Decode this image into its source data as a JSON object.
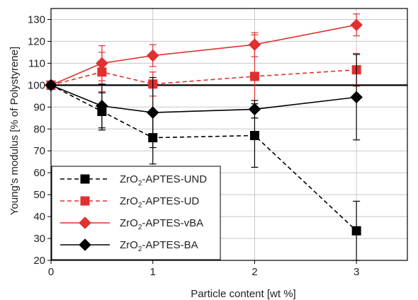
{
  "chart_data": {
    "type": "line",
    "xlabel": "Particle content [wt %]",
    "ylabel": "Young's modulus [% of Polystyrene]",
    "xlim": [
      0,
      3.5
    ],
    "ylim": [
      20,
      135
    ],
    "x_ticks": [
      "0",
      "1",
      "2",
      "3"
    ],
    "y_ticks": [
      "20",
      "30",
      "40",
      "50",
      "60",
      "70",
      "80",
      "90",
      "100",
      "110",
      "120",
      "130"
    ],
    "grid": true,
    "reference_line": {
      "y": 100
    },
    "legend_position": "bottom-left",
    "series": [
      {
        "name": "ZrO2-APTES-UND",
        "legend_base": "ZrO",
        "legend_sub": "2",
        "legend_rest": "-APTES-UND",
        "color": "#000000",
        "line": "dashed",
        "marker": "square",
        "x": [
          0,
          0.5,
          1,
          2,
          3
        ],
        "y": [
          100,
          88,
          76,
          77,
          33.5
        ],
        "err": [
          0,
          8.5,
          12,
          14.5,
          13.5
        ]
      },
      {
        "name": "ZrO2-APTES-UD",
        "legend_base": "ZrO",
        "legend_sub": "2",
        "legend_rest": "-APTES-UD",
        "color": "#e03030",
        "line": "dashed",
        "marker": "square",
        "x": [
          0,
          0.5,
          1,
          2,
          3
        ],
        "y": [
          100,
          106,
          100.5,
          104,
          107
        ],
        "err": [
          0,
          9,
          5.5,
          19,
          7.5
        ]
      },
      {
        "name": "ZrO2-APTES-vBA",
        "legend_base": "ZrO",
        "legend_sub": "2",
        "legend_rest": "-APTES-vBA",
        "color": "#e03030",
        "line": "solid",
        "marker": "diamond",
        "x": [
          0,
          0.5,
          1,
          2,
          3
        ],
        "y": [
          100,
          110,
          113.5,
          118.5,
          127.5
        ],
        "err": [
          0,
          8,
          5,
          5.5,
          5
        ]
      },
      {
        "name": "ZrO2-APTES-BA",
        "legend_base": "ZrO",
        "legend_sub": "2",
        "legend_rest": "-APTES-BA",
        "color": "#000000",
        "line": "solid",
        "marker": "diamond",
        "x": [
          0,
          0.5,
          1,
          2,
          3
        ],
        "y": [
          100,
          90.5,
          87.5,
          89,
          94.5
        ],
        "err": [
          0,
          10,
          16,
          4,
          19.5
        ]
      }
    ]
  }
}
